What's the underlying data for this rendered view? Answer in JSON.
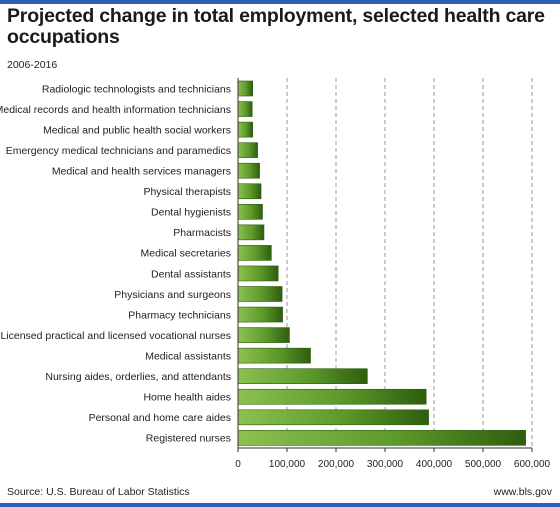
{
  "header": {
    "title": "Projected change in total employment, selected health care occupations",
    "subtitle": "2006-2016"
  },
  "footer": {
    "source": "Source: U.S. Bureau of Labor Statistics",
    "site": "www.bls.gov"
  },
  "colors": {
    "frame": "#2b62b8",
    "bar_dark": "#2f5d0e",
    "bar_mid": "#5c9a2a",
    "bar_light": "#8cc150",
    "grid": "#9a9a9a"
  },
  "chart_data": {
    "type": "bar",
    "orientation": "horizontal",
    "title": "Projected change in total employment, selected health care occupations",
    "subtitle": "2006-2016",
    "categories": [
      "Radiologic technologists and technicians",
      "Medical records and health information technicians",
      "Medical and public health social workers",
      "Emergency medical technicians and paramedics",
      "Medical and health services managers",
      "Physical therapists",
      "Dental hygienists",
      "Pharmacists",
      "Medical secretaries",
      "Dental assistants",
      "Physicians and surgeons",
      "Pharmacy technicians",
      "Licensed practical and licensed vocational nurses",
      "Medical assistants",
      "Nursing aides, orderlies, and attendants",
      "Home health aides",
      "Personal and home care aides",
      "Registered nurses"
    ],
    "values": [
      30000,
      29000,
      30000,
      40000,
      44000,
      47000,
      50000,
      53000,
      68000,
      82000,
      90000,
      91000,
      105000,
      148000,
      264000,
      384000,
      389000,
      587000
    ],
    "xlim": [
      0,
      600000
    ],
    "xticks": [
      0,
      100000,
      200000,
      300000,
      400000,
      500000,
      600000
    ],
    "xtick_labels": [
      "0",
      "100,000",
      "200,000",
      "300,000",
      "400,000",
      "500,000",
      "600,000"
    ],
    "grid": "vertical dashed",
    "legend": "none"
  }
}
